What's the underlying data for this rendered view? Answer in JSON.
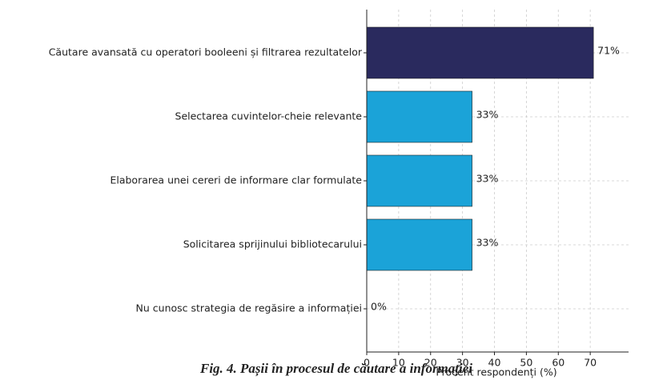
{
  "chart_data": {
    "type": "barh",
    "categories": [
      "Căutare avansată cu operatori booleeni și filtrarea rezultatelor",
      "Selectarea cuvintelor-cheie relevante",
      "Elaborarea unei cereri de informare clar formulate",
      "Solicitarea sprijinului bibliotecarului",
      "Nu cunosc strategia de regăsire a informației"
    ],
    "values": [
      71,
      33,
      33,
      33,
      0
    ],
    "value_labels": [
      "71%",
      "33%",
      "33%",
      "33%",
      "0%"
    ],
    "colors": [
      "#2a2a5e",
      "#1ba3d8",
      "#1ba3d8",
      "#1ba3d8",
      "#1ba3d8"
    ],
    "xlabel": "Procent respondenți (%)",
    "caption": "Fig. 4. Pașii în procesul de căutare a informației",
    "xlim": [
      0,
      82
    ],
    "xticks": [
      0,
      10,
      20,
      30,
      40,
      50,
      60,
      70
    ],
    "grid": true
  }
}
